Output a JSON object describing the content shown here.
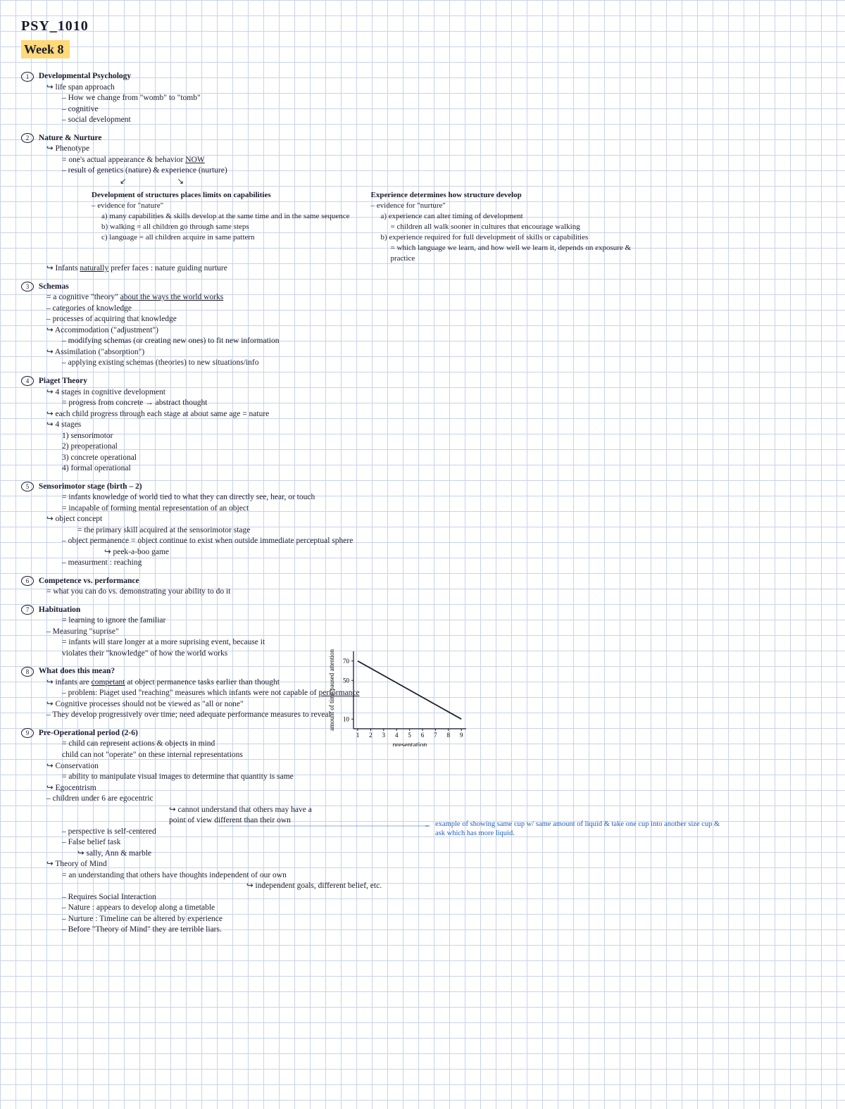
{
  "course": "PSY_1010",
  "week": "Week 8",
  "colors": {
    "ink": "#1a1a2e",
    "grid": "#c8d4e8",
    "highlight": "#ffd97a",
    "blue_ink": "#2060c0",
    "bg": "#ffffff"
  },
  "chart": {
    "type": "line",
    "x_label": "presentation",
    "y_label": "amount of time\npaused attention",
    "x_ticks": [
      "1",
      "2",
      "3",
      "4",
      "5",
      "6",
      "7",
      "8",
      "9"
    ],
    "y_ticks": [
      "10",
      "50",
      "70"
    ],
    "points": [
      [
        1,
        70
      ],
      [
        9,
        10
      ]
    ],
    "line_color": "#1a1a2e",
    "axis_color": "#1a1a2e",
    "font_size": 9
  },
  "blue_annotation": "example of showing same cup w/ same amount of liquid & take one cup into another size cup & ask which has more liquid.",
  "sections": {
    "s1": {
      "title": "Developmental Psychology",
      "l1": "life span approach",
      "l2": "How we change from \"womb\" to \"tomb\"",
      "l3": "cognitive",
      "l4": "social development"
    },
    "s2": {
      "title": "Nature & Nurture",
      "l1": "Phenotype",
      "l2": "one's actual appearance & behavior",
      "l2u": "NOW",
      "l3": "result of genetics (nature) & experience (nurture)",
      "colL": {
        "h": "Development of structures places limits on capabilities",
        "ev": "– evidence for \"nature\"",
        "a": "a) many capabilities & skills develop at the same time and in the same sequence",
        "b": "b) walking = all children go through same steps",
        "c": "c) language = all children acquire in same pattern"
      },
      "colR": {
        "h": "Experience determines how structure develop",
        "ev": "– evidence for \"nurture\"",
        "a": "a) experience can alter timing of development",
        "a2": "= children all walk sooner in cultures that encourage walking",
        "b": "b) experience required for full development of skills or capabilities",
        "b2": "= which language we learn, and how well we learn it, depends on exposure & practice"
      },
      "l4a": "Infants ",
      "l4u": "naturally",
      "l4b": " prefer faces : nature guiding nurture"
    },
    "s3": {
      "title": "Schemas",
      "l1a": "a cognitive \"theory\" ",
      "l1u": "about the ways the world works",
      "l2": "categories of knowledge",
      "l3": "processes of acquiring that knowledge",
      "l4": "Accommodation (\"adjustment\")",
      "l5": "modifying schemas (or creating new ones) to fit new information",
      "l6": "Assimilation (\"absorption\")",
      "l7": "applying existing schemas (theories) to new situations/info"
    },
    "s4": {
      "title": "Piaget Theory",
      "l1": "4 stages in cognitive development",
      "l2": "= progress from concrete → abstract thought",
      "l3": "each child progress through each stage at about same age = nature",
      "l4": "4 stages",
      "s1": "1) sensorimotor",
      "s2": "2) preoperational",
      "s3": "3) concrete operational",
      "s4": "4) formal operational"
    },
    "s5": {
      "title": "Sensorimotor stage (birth – 2)",
      "l1": "infants knowledge of world tied to what they can directly see, hear, or touch",
      "l2": "incapable of forming mental representation of an object",
      "l3": "object concept",
      "l4": "the primary skill acquired at the sensorimotor stage",
      "l5": "object permanence = object continue to exist when outside immediate perceptual sphere",
      "l6": "↪ peek-a-boo game",
      "l7": "measurment : reaching"
    },
    "s6": {
      "title": "Competence vs. performance",
      "l1": "what you can do vs. demonstrating your ability to do it"
    },
    "s7": {
      "title": "Habituation",
      "l1": "learning to ignore the familiar",
      "l2": "Measuring \"suprise\"",
      "l3": "infants will stare longer at a more suprising event, because it violates their \"knowledge\" of how the world works"
    },
    "s8": {
      "title": "What does this mean?",
      "l1a": "infants are ",
      "l1u": "competant",
      "l1b": " at object permanence tasks earlier than thought",
      "l2a": "problem: Piaget used \"reaching\" measures which infants were not capable of ",
      "l2u": "performance",
      "l3": "Cognitive processes should not be viewed as \"all or none\"",
      "l4": "They develop progressively over time; need adequate performance measures to reveal"
    },
    "s9": {
      "title": "Pre-Operational period (2-6)",
      "l1": "child can represent actions & objects in mind",
      "l2": "child can not \"operate\" on these internal representations",
      "l3": "Conservation",
      "l4": "ability to manipulate visual images to determine that quantity is same",
      "l5": "Egocentrism",
      "l6": "children under 6 are egocentric",
      "l7": "↪ cannot understand that others may have a point of view different than their own",
      "l8": "perspective is self-centered",
      "l9": "False belief task",
      "l10": "↪ sally, Ann & marble",
      "l11": "Theory of Mind",
      "l12": "an understanding that others have thoughts independent of our own",
      "l13": "↪ independent goals, different belief, etc.",
      "l14": "Requires Social Interaction",
      "l15": "Nature : appears to develop along a timetable",
      "l16": "Nurture : Timeline can be altered by experience",
      "l17": "Before \"Theory of Mind\" they are terrible liars."
    }
  }
}
